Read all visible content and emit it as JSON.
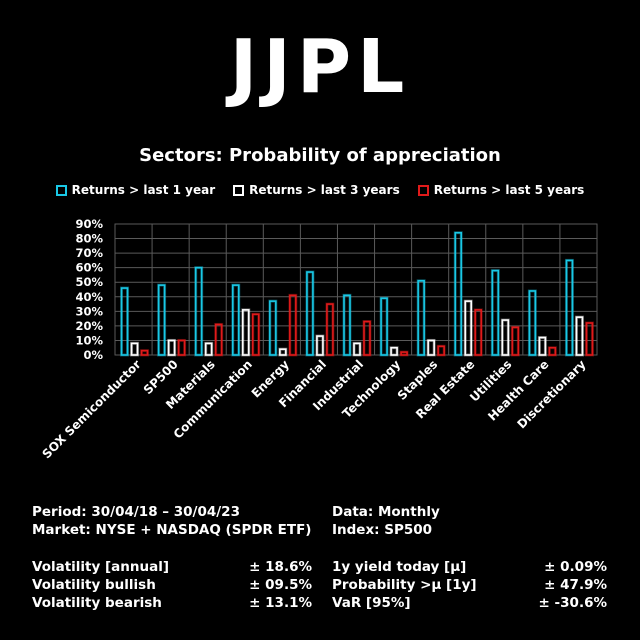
{
  "logo": "JJPL",
  "chart_data": {
    "type": "bar",
    "title": "Sectors: Probability of appreciation",
    "categories": [
      "SOX Semiconductor",
      "SP500",
      "Materials",
      "Communication",
      "Energy",
      "Financial",
      "Industrial",
      "Technology",
      "Staples",
      "Real Estate",
      "Utilities",
      "Health Care",
      "Discretionary"
    ],
    "series": [
      {
        "name": "Returns > last 1 year",
        "color": "#19c8e6",
        "values": [
          46,
          48,
          60,
          48,
          37,
          57,
          41,
          39,
          51,
          84,
          58,
          44,
          65
        ]
      },
      {
        "name": "Returns > last 3 years",
        "color": "#ffffff",
        "values": [
          8,
          10,
          8,
          31,
          4,
          13,
          8,
          5,
          10,
          37,
          24,
          12,
          26
        ]
      },
      {
        "name": "Returns > last 5 years",
        "color": "#e01a1a",
        "values": [
          3,
          10,
          21,
          28,
          41,
          35,
          23,
          2,
          6,
          31,
          19,
          5,
          22
        ]
      }
    ],
    "y_ticks": [
      "0%",
      "10%",
      "20%",
      "30%",
      "40%",
      "50%",
      "60%",
      "70%",
      "80%",
      "90%"
    ],
    "ylim": [
      0,
      90
    ],
    "xlabel": "",
    "ylabel": "",
    "legend": "top-center",
    "grid": true
  },
  "stats": {
    "period": "Period: 30/04/18 – 30/04/23",
    "market": "Market: NYSE + NASDAQ (SPDR ETF)",
    "data": "Data: Monthly",
    "index": "Index: SP500",
    "left": [
      {
        "label": "Volatility [annual]",
        "value": "± 18.6%"
      },
      {
        "label": "Volatility bullish",
        "value": "± 09.5%"
      },
      {
        "label": "Volatility bearish",
        "value": "± 13.1%"
      }
    ],
    "right": [
      {
        "label": "1y yield today [μ]",
        "value": "± 0.09%"
      },
      {
        "label": "Probability >μ [1y]",
        "value": "± 47.9%"
      },
      {
        "label": "VaR [95%]",
        "value": "± -30.6%"
      }
    ]
  }
}
